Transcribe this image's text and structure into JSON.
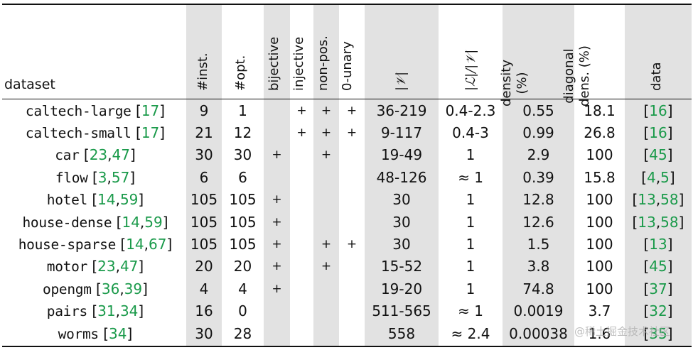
{
  "table": {
    "headers": {
      "dataset": "dataset",
      "inst": "#inst.",
      "opt": "#opt.",
      "bijective": "bijective",
      "injective": "injective",
      "nonpos": "non-pos.",
      "unary": "0-unary",
      "V": "|𝒱|",
      "LV": "|ℒ|/|𝒱|",
      "density_1": "density",
      "density_2": "(%)",
      "diag_1": "diagonal",
      "diag_2": "dens. (%)",
      "data": "data"
    },
    "rows": [
      {
        "name": "caltech-large",
        "open": " [",
        "refs": [
          "17"
        ],
        "close": "]",
        "inst": "9",
        "opt": "1",
        "bijective": "",
        "injective": "+",
        "nonpos": "+",
        "unary": "+",
        "V": "36-219",
        "LV": "0.4-2.3",
        "density": "0.55",
        "diag": "18.1",
        "data_open": "[",
        "data_refs": [
          "16"
        ],
        "data_close": "]"
      },
      {
        "name": "caltech-small",
        "open": " [",
        "refs": [
          "17"
        ],
        "close": "]",
        "inst": "21",
        "opt": "12",
        "bijective": "",
        "injective": "+",
        "nonpos": "+",
        "unary": "+",
        "V": "9-117",
        "LV": "0.4-3",
        "density": "0.99",
        "diag": "26.8",
        "data_open": "[",
        "data_refs": [
          "16"
        ],
        "data_close": "]"
      },
      {
        "name": "car",
        "open": " [",
        "refs": [
          "23",
          "47"
        ],
        "close": "]",
        "inst": "30",
        "opt": "30",
        "bijective": "+",
        "injective": "",
        "nonpos": "+",
        "unary": "",
        "V": "19-49",
        "LV": "1",
        "density": "2.9",
        "diag": "100",
        "data_open": "[",
        "data_refs": [
          "45"
        ],
        "data_close": "]"
      },
      {
        "name": "flow",
        "open": " [",
        "refs": [
          "3",
          "57"
        ],
        "close": "]",
        "inst": "6",
        "opt": "6",
        "bijective": "",
        "injective": "",
        "nonpos": "",
        "unary": "",
        "V": "48-126",
        "LV": "≈ 1",
        "density": "0.39",
        "diag": "15.8",
        "data_open": "[",
        "data_refs": [
          "4",
          "5"
        ],
        "data_close": "]"
      },
      {
        "name": "hotel",
        "open": " [",
        "refs": [
          "14",
          "59"
        ],
        "close": "]",
        "inst": "105",
        "opt": "105",
        "bijective": "+",
        "injective": "",
        "nonpos": "",
        "unary": "",
        "V": "30",
        "LV": "1",
        "density": "12.8",
        "diag": "100",
        "data_open": "[",
        "data_refs": [
          "13",
          "58"
        ],
        "data_close": "]"
      },
      {
        "name": "house-dense",
        "open": " [",
        "refs": [
          "14",
          "59"
        ],
        "close": "]",
        "inst": "105",
        "opt": "105",
        "bijective": "+",
        "injective": "",
        "nonpos": "",
        "unary": "",
        "V": "30",
        "LV": "1",
        "density": "12.6",
        "diag": "100",
        "data_open": "[",
        "data_refs": [
          "13",
          "58"
        ],
        "data_close": "]"
      },
      {
        "name": "house-sparse",
        "open": " [",
        "refs": [
          "14",
          "67"
        ],
        "close": "]",
        "inst": "105",
        "opt": "105",
        "bijective": "+",
        "injective": "",
        "nonpos": "+",
        "unary": "+",
        "V": "30",
        "LV": "1",
        "density": "1.5",
        "diag": "100",
        "data_open": "[",
        "data_refs": [
          "13"
        ],
        "data_close": "]"
      },
      {
        "name": "motor",
        "open": " [",
        "refs": [
          "23",
          "47"
        ],
        "close": "]",
        "inst": "20",
        "opt": "20",
        "bijective": "+",
        "injective": "",
        "nonpos": "+",
        "unary": "",
        "V": "15-52",
        "LV": "1",
        "density": "3.8",
        "diag": "100",
        "data_open": "[",
        "data_refs": [
          "45"
        ],
        "data_close": "]"
      },
      {
        "name": "opengm",
        "open": " [",
        "refs": [
          "36",
          "39"
        ],
        "close": "]",
        "inst": "4",
        "opt": "4",
        "bijective": "+",
        "injective": "",
        "nonpos": "",
        "unary": "",
        "V": "19-20",
        "LV": "1",
        "density": "74.8",
        "diag": "100",
        "data_open": "[",
        "data_refs": [
          "37"
        ],
        "data_close": "]"
      },
      {
        "name": "pairs",
        "open": " [",
        "refs": [
          "31",
          "34"
        ],
        "close": "]",
        "inst": "16",
        "opt": "0",
        "bijective": "",
        "injective": "",
        "nonpos": "",
        "unary": "",
        "V": "511-565",
        "LV": "≈ 1",
        "density": "0.0019",
        "diag": "3.7",
        "data_open": "[",
        "data_refs": [
          "32"
        ],
        "data_close": "]"
      },
      {
        "name": "worms",
        "open": " [",
        "refs": [
          "34"
        ],
        "close": "]",
        "inst": "30",
        "opt": "28",
        "bijective": "",
        "injective": "",
        "nonpos": "",
        "unary": "",
        "V": "558",
        "LV": "≈ 2.4",
        "density": "0.00038",
        "diag": "1.6",
        "data_open": "[",
        "data_refs": [
          "35"
        ],
        "data_close": "]"
      }
    ]
  },
  "watermark": "@稀土掘金技术社区",
  "colors": {
    "shade": "#e2e2e2",
    "ref": "#1a9a4a",
    "rule": "#111111"
  }
}
